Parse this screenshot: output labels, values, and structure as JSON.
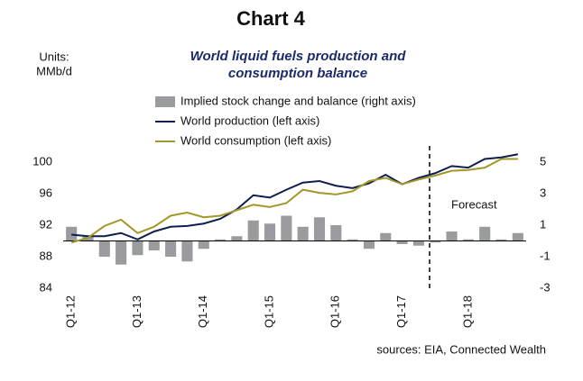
{
  "chart_data": {
    "type": "bar-line",
    "title": "Chart 4",
    "subtitle": [
      "World liquid fuels production and",
      "consumption balance"
    ],
    "y_label": [
      "Units:",
      "MMb/d"
    ],
    "annotation": "Forecast",
    "source": "sources: EIA, Connected Wealth",
    "categories": [
      "Q1-12",
      null,
      null,
      null,
      "Q1-13",
      null,
      null,
      null,
      "Q1-14",
      null,
      null,
      null,
      "Q1-15",
      null,
      null,
      null,
      "Q1-16",
      null,
      null,
      null,
      "Q1-17",
      null,
      null,
      null,
      "Q1-18",
      null,
      null,
      null
    ],
    "series": [
      {
        "name": "Implied stock change and balance (right axis)",
        "color": "#9a9b9e",
        "kind": "bar",
        "axis": "y2",
        "values": [
          0.9,
          0.3,
          -1.0,
          -1.5,
          -0.9,
          -0.6,
          -1.0,
          -1.3,
          -0.5,
          0.1,
          0.3,
          1.3,
          1.1,
          1.6,
          0.9,
          1.5,
          1.0,
          0.1,
          -0.5,
          0.5,
          -0.2,
          -0.3,
          -0.1,
          0.6,
          0.1,
          0.9,
          0.1,
          0.5
        ]
      },
      {
        "name": "World production (left axis)",
        "color": "#0d1f4f",
        "kind": "line",
        "values": [
          90.8,
          90.6,
          90.6,
          91.0,
          90.2,
          91.2,
          91.8,
          91.9,
          92.2,
          92.8,
          94.0,
          95.8,
          95.5,
          96.5,
          97.4,
          97.6,
          97.0,
          96.7,
          97.3,
          98.4,
          97.2,
          98.0,
          98.6,
          99.5,
          99.3,
          100.4,
          100.6,
          101.0
        ]
      },
      {
        "name": "World consumption (left axis)",
        "color": "#a39729",
        "kind": "line",
        "values": [
          89.8,
          90.4,
          91.9,
          92.7,
          91.0,
          91.8,
          93.2,
          93.6,
          93.0,
          93.2,
          93.9,
          94.6,
          94.3,
          94.8,
          96.5,
          96.1,
          95.9,
          96.3,
          97.6,
          98.0,
          97.2,
          97.8,
          98.3,
          98.9,
          99.0,
          99.3,
          100.4,
          100.4
        ]
      }
    ],
    "ylim": [
      84,
      102
    ],
    "yticks": [
      84,
      88,
      92,
      96,
      100
    ],
    "y2lim": [
      -3,
      6
    ],
    "y2ticks": [
      -3,
      -1,
      1,
      3,
      5
    ]
  }
}
